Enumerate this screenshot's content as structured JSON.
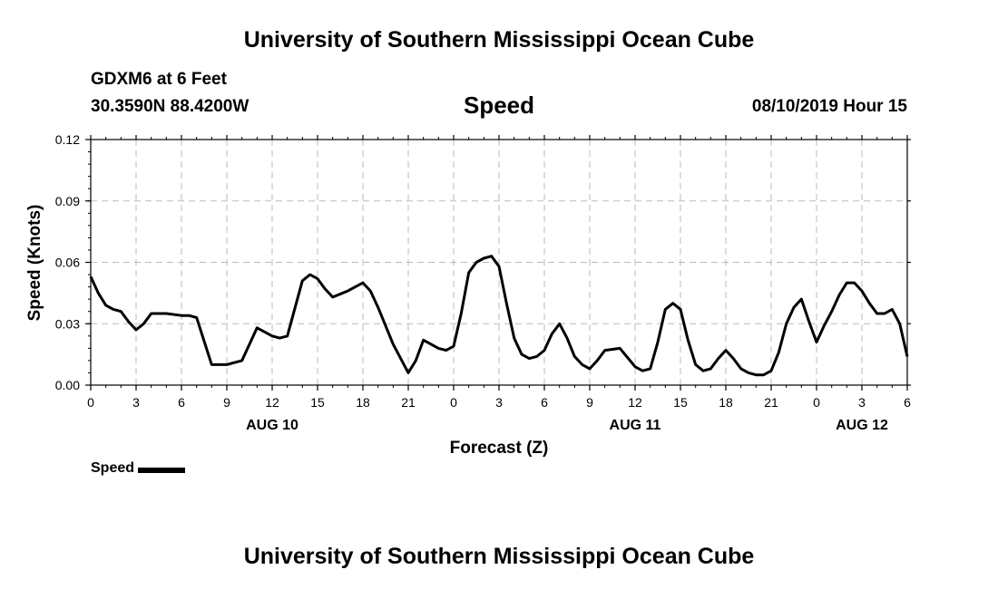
{
  "header": {
    "title": "University of Southern Mississippi Ocean Cube",
    "station": "GDXM6 at 6 Feet",
    "coords": "30.3590N 88.4200W",
    "variable": "Speed",
    "timestamp": "08/10/2019 Hour 15"
  },
  "footer": {
    "title": "University of Southern Mississippi Ocean Cube"
  },
  "legend": {
    "label": "Speed",
    "color": "#000000"
  },
  "chart_data": {
    "type": "line",
    "title": "Speed",
    "xlabel": "Forecast (Z)",
    "ylabel": "Speed (Knots)",
    "xlim": [
      0,
      54
    ],
    "ylim": [
      0.0,
      0.12
    ],
    "grid": true,
    "legend_position": "bottom-left",
    "y_ticks": [
      0.0,
      0.03,
      0.06,
      0.09,
      0.12
    ],
    "y_tick_labels": [
      "0.00",
      "0.03",
      "0.06",
      "0.09",
      "0.12"
    ],
    "x_ticks": [
      0,
      3,
      6,
      9,
      12,
      15,
      18,
      21,
      24,
      27,
      30,
      33,
      36,
      39,
      42,
      45,
      48,
      51,
      54
    ],
    "x_tick_labels": [
      "0",
      "3",
      "6",
      "9",
      "12",
      "15",
      "18",
      "21",
      "0",
      "3",
      "6",
      "9",
      "12",
      "15",
      "18",
      "21",
      "0",
      "3",
      "6"
    ],
    "date_labels": [
      {
        "x": 12,
        "label": "AUG 10"
      },
      {
        "x": 36,
        "label": "AUG 11"
      },
      {
        "x": 51,
        "label": "AUG 12"
      }
    ],
    "series": [
      {
        "name": "Speed",
        "x": [
          0,
          0.5,
          1,
          1.5,
          2,
          2.5,
          3,
          3.5,
          4,
          5,
          6,
          6.5,
          7,
          8,
          9,
          10,
          11,
          12,
          12.5,
          13,
          14,
          14.5,
          15,
          15.5,
          16,
          17,
          18,
          18.5,
          19,
          20,
          21,
          21.5,
          22,
          23,
          23.5,
          24,
          24.5,
          25,
          25.5,
          26,
          26.5,
          27,
          27.5,
          28,
          28.5,
          29,
          29.5,
          30,
          30.5,
          31,
          31.5,
          32,
          32.5,
          33,
          33.5,
          34,
          35,
          36,
          36.5,
          37,
          37.5,
          38,
          38.5,
          39,
          39.5,
          40,
          40.5,
          41,
          41.5,
          42,
          42.5,
          43,
          43.5,
          44,
          44.5,
          45,
          45.5,
          46,
          46.5,
          47,
          47.5,
          48,
          48.5,
          49,
          49.5,
          50,
          50.5,
          51,
          51.5,
          52,
          52.5,
          53,
          53.5,
          54
        ],
        "values": [
          0.053,
          0.045,
          0.039,
          0.037,
          0.036,
          0.031,
          0.027,
          0.03,
          0.035,
          0.035,
          0.034,
          0.034,
          0.033,
          0.01,
          0.01,
          0.012,
          0.028,
          0.024,
          0.023,
          0.024,
          0.051,
          0.054,
          0.052,
          0.047,
          0.043,
          0.046,
          0.05,
          0.046,
          0.038,
          0.02,
          0.006,
          0.012,
          0.022,
          0.018,
          0.017,
          0.019,
          0.035,
          0.055,
          0.06,
          0.062,
          0.063,
          0.058,
          0.04,
          0.023,
          0.015,
          0.013,
          0.014,
          0.017,
          0.025,
          0.03,
          0.023,
          0.014,
          0.01,
          0.008,
          0.012,
          0.017,
          0.018,
          0.009,
          0.007,
          0.008,
          0.021,
          0.037,
          0.04,
          0.037,
          0.022,
          0.01,
          0.007,
          0.008,
          0.013,
          0.017,
          0.013,
          0.008,
          0.006,
          0.005,
          0.005,
          0.007,
          0.016,
          0.03,
          0.038,
          0.042,
          0.031,
          0.021,
          0.029,
          0.036,
          0.044,
          0.05,
          0.05,
          0.046,
          0.04,
          0.035,
          0.035,
          0.037,
          0.03,
          0.014
        ]
      }
    ]
  }
}
